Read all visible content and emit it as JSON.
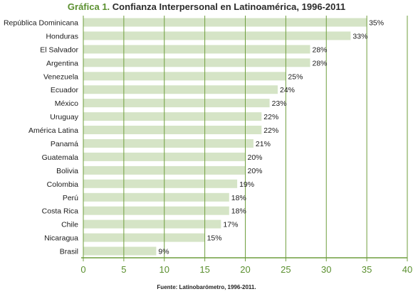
{
  "title": {
    "prefix": "Gráfica 1.",
    "main": "Confianza Interpersonal en Latinoamérica, 1996-2011"
  },
  "source_note": "Fuente: Latinobarómetro, 1996-2011.",
  "colors": {
    "bar": "#d5e4c6",
    "grid": "#6f9e3e",
    "axis": "#6f9e3e",
    "tick_label": "#5a8f2e",
    "label": "#1a1a1a"
  },
  "chart_data": {
    "type": "bar",
    "orientation": "horizontal",
    "title": "Gráfica 1. Confianza Interpersonal en Latinoamérica, 1996-2011",
    "xlabel": "",
    "ylabel": "",
    "xlim": [
      0,
      40
    ],
    "x_ticks": [
      0,
      5,
      10,
      15,
      20,
      25,
      30,
      35,
      40
    ],
    "grid": true,
    "categories": [
      "República Dominicana",
      "Honduras",
      "El Salvador",
      "Argentina",
      "Venezuela",
      "Ecuador",
      "México",
      "Uruguay",
      "América Latina",
      "Panamá",
      "Guatemala",
      "Bolivia",
      "Colombia",
      "Perú",
      "Costa Rica",
      "Chile",
      "Nicaragua",
      "Brasil"
    ],
    "values": [
      35,
      33,
      28,
      28,
      25,
      24,
      23,
      22,
      22,
      21,
      20,
      20,
      19,
      18,
      18,
      17,
      15,
      9
    ],
    "data_labels": [
      "35%",
      "33%",
      "28%",
      "28%",
      "25%",
      "24%",
      "23%",
      "22%",
      "22%",
      "21%",
      "20%",
      "20%",
      "19%",
      "18%",
      "18%",
      "17%",
      "15%",
      "9%"
    ]
  }
}
